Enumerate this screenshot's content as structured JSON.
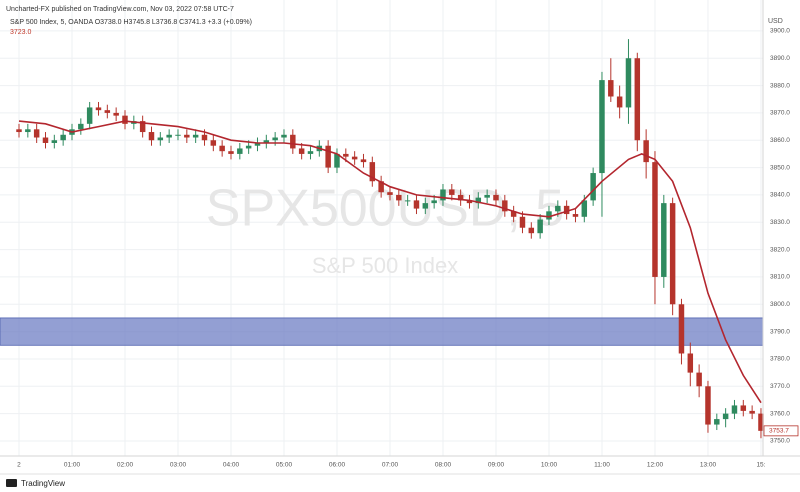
{
  "chart_data": {
    "type": "candlestick",
    "published": "Uncharted-FX published on TradingView.com, Nov 03, 2022 07:58 UTC-7",
    "symbol_line": "S&P 500 Index, 5, OANDA  O3738.0  H3745.8  L3736.8  C3741.3  +3.3 (+0.09%)",
    "sub_value": "3723.0",
    "watermark": "SPX500USD, 5",
    "watermark_sub": "S&P 500 Index",
    "currency": "USD",
    "brand": "TradingView",
    "up_color": "#2f8a5f",
    "down_color": "#b5342c",
    "x": [
      0,
      10,
      20,
      30,
      40,
      50,
      60,
      70,
      80,
      90,
      100,
      110,
      120,
      130,
      140,
      150,
      160,
      170,
      180,
      190,
      200,
      210,
      220,
      230,
      240,
      250,
      260,
      270,
      280,
      290,
      300,
      310,
      320,
      330,
      340,
      350,
      360,
      370,
      380,
      390,
      400,
      410,
      420,
      430,
      440,
      450,
      460,
      470,
      480,
      490,
      500,
      510,
      520,
      530,
      540,
      550,
      560,
      570,
      580,
      590,
      600,
      610,
      620,
      630,
      640,
      650,
      660,
      670,
      680,
      690,
      700,
      710,
      720,
      730,
      740,
      750,
      760,
      770,
      780,
      790,
      800,
      810,
      820,
      830,
      840
    ],
    "open": [
      3864,
      3863,
      3864,
      3861,
      3859,
      3860,
      3862,
      3864,
      3866,
      3872,
      3871,
      3870,
      3869,
      3866,
      3867,
      3863,
      3860,
      3861,
      3862,
      3862,
      3861,
      3862,
      3860,
      3858,
      3856,
      3855,
      3857,
      3858,
      3859,
      3860,
      3861,
      3862,
      3857,
      3855,
      3856,
      3858,
      3850,
      3855,
      3854,
      3853,
      3852,
      3845,
      3841,
      3840,
      3838,
      3838,
      3835,
      3837,
      3838,
      3842,
      3840,
      3838,
      3837,
      3839,
      3840,
      3838,
      3834,
      3832,
      3828,
      3826,
      3831,
      3834,
      3836,
      3833,
      3832,
      3838,
      3848,
      3882,
      3876,
      3872,
      3890,
      3860,
      3852,
      3810,
      3837,
      3800,
      3782,
      3775,
      3770,
      3756,
      3758,
      3760,
      3763,
      3761,
      3760
    ],
    "high": [
      3866,
      3866,
      3866,
      3863,
      3862,
      3864,
      3866,
      3868,
      3874,
      3874,
      3873,
      3872,
      3871,
      3869,
      3869,
      3865,
      3863,
      3864,
      3864,
      3864,
      3864,
      3864,
      3862,
      3860,
      3858,
      3859,
      3860,
      3861,
      3862,
      3863,
      3864,
      3864,
      3859,
      3858,
      3860,
      3860,
      3857,
      3857,
      3856,
      3855,
      3854,
      3847,
      3843,
      3842,
      3840,
      3840,
      3839,
      3840,
      3844,
      3844,
      3842,
      3840,
      3841,
      3842,
      3842,
      3840,
      3836,
      3834,
      3830,
      3833,
      3836,
      3838,
      3838,
      3835,
      3840,
      3850,
      3885,
      3890,
      3880,
      3897,
      3892,
      3864,
      3856,
      3840,
      3839,
      3802,
      3786,
      3778,
      3772,
      3760,
      3762,
      3765,
      3765,
      3763,
      3762
    ],
    "low": [
      3861,
      3861,
      3859,
      3857,
      3857,
      3858,
      3860,
      3862,
      3864,
      3869,
      3868,
      3867,
      3864,
      3864,
      3861,
      3858,
      3858,
      3859,
      3860,
      3859,
      3859,
      3858,
      3856,
      3854,
      3853,
      3853,
      3855,
      3856,
      3857,
      3858,
      3859,
      3855,
      3853,
      3853,
      3854,
      3848,
      3848,
      3852,
      3851,
      3850,
      3843,
      3839,
      3838,
      3836,
      3836,
      3833,
      3833,
      3835,
      3836,
      3838,
      3836,
      3835,
      3835,
      3837,
      3836,
      3832,
      3830,
      3826,
      3824,
      3824,
      3829,
      3832,
      3831,
      3830,
      3830,
      3836,
      3832,
      3874,
      3868,
      3866,
      3856,
      3846,
      3800,
      3806,
      3796,
      3778,
      3770,
      3766,
      3753,
      3754,
      3755,
      3758,
      3759,
      3758,
      3751
    ],
    "close": [
      3863,
      3864,
      3861,
      3859,
      3860,
      3862,
      3864,
      3866,
      3872,
      3871,
      3870,
      3869,
      3866,
      3867,
      3863,
      3860,
      3861,
      3862,
      3862,
      3861,
      3862,
      3860,
      3858,
      3856,
      3855,
      3857,
      3858,
      3859,
      3860,
      3861,
      3862,
      3857,
      3855,
      3856,
      3858,
      3850,
      3855,
      3854,
      3853,
      3852,
      3845,
      3841,
      3840,
      3838,
      3838,
      3835,
      3837,
      3838,
      3842,
      3840,
      3838,
      3837,
      3839,
      3840,
      3838,
      3834,
      3832,
      3828,
      3826,
      3831,
      3834,
      3836,
      3833,
      3832,
      3838,
      3848,
      3882,
      3876,
      3872,
      3890,
      3860,
      3852,
      3810,
      3837,
      3800,
      3782,
      3775,
      3770,
      3756,
      3758,
      3760,
      3763,
      3761,
      3760,
      3753.7
    ],
    "ma": {
      "color": "#b3262e",
      "x": [
        0,
        30,
        60,
        90,
        120,
        150,
        180,
        210,
        240,
        270,
        300,
        330,
        360,
        390,
        420,
        450,
        480,
        510,
        540,
        570,
        600,
        630,
        660,
        690,
        705,
        720,
        740,
        760,
        780,
        800,
        820,
        840
      ],
      "values": [
        3867,
        3866,
        3863,
        3865,
        3867,
        3866,
        3865,
        3863,
        3860,
        3859,
        3859,
        3858,
        3855,
        3848,
        3843,
        3840,
        3839,
        3838,
        3836,
        3833,
        3832,
        3835,
        3845,
        3853,
        3855,
        3853,
        3845,
        3828,
        3804,
        3787,
        3774,
        3764
      ]
    },
    "zone": [
      3785,
      3795
    ],
    "zone_color": "#6f7fc4",
    "xlim": [
      -21.5,
      842.3
    ],
    "ylim": [
      3744.5,
      3911.3
    ],
    "xticks": [
      {
        "value": 0,
        "label": "2"
      },
      {
        "value": 60,
        "label": "01:00"
      },
      {
        "value": 120,
        "label": "02:00"
      },
      {
        "value": 180,
        "label": "03:00"
      },
      {
        "value": 240,
        "label": "04:00"
      },
      {
        "value": 300,
        "label": "05:00"
      },
      {
        "value": 360,
        "label": "06:00"
      },
      {
        "value": 420,
        "label": "07:00"
      },
      {
        "value": 480,
        "label": "08:00"
      },
      {
        "value": 540,
        "label": "09:00"
      },
      {
        "value": 600,
        "label": "10:00"
      },
      {
        "value": 660,
        "label": "11:00"
      },
      {
        "value": 720,
        "label": "12:00"
      },
      {
        "value": 780,
        "label": "13:00"
      },
      {
        "value": 840,
        "label": "15:"
      }
    ],
    "yticks": [
      {
        "value": 3750,
        "label": "3750.0"
      },
      {
        "value": 3760,
        "label": "3760.0"
      },
      {
        "value": 3770,
        "label": "3770.0"
      },
      {
        "value": 3780,
        "label": "3780.0"
      },
      {
        "value": 3790,
        "label": "3790.0"
      },
      {
        "value": 3800,
        "label": "3800.0"
      },
      {
        "value": 3810,
        "label": "3810.0"
      },
      {
        "value": 3820,
        "label": "3820.0"
      },
      {
        "value": 3830,
        "label": "3830.0"
      },
      {
        "value": 3840,
        "label": "3840.0"
      },
      {
        "value": 3850,
        "label": "3850.0"
      },
      {
        "value": 3860,
        "label": "3860.0"
      },
      {
        "value": 3870,
        "label": "3870.0"
      },
      {
        "value": 3880,
        "label": "3880.0"
      },
      {
        "value": 3890,
        "label": "3890.0"
      },
      {
        "value": 3900,
        "label": "3900.0"
      }
    ],
    "grid": true
  }
}
